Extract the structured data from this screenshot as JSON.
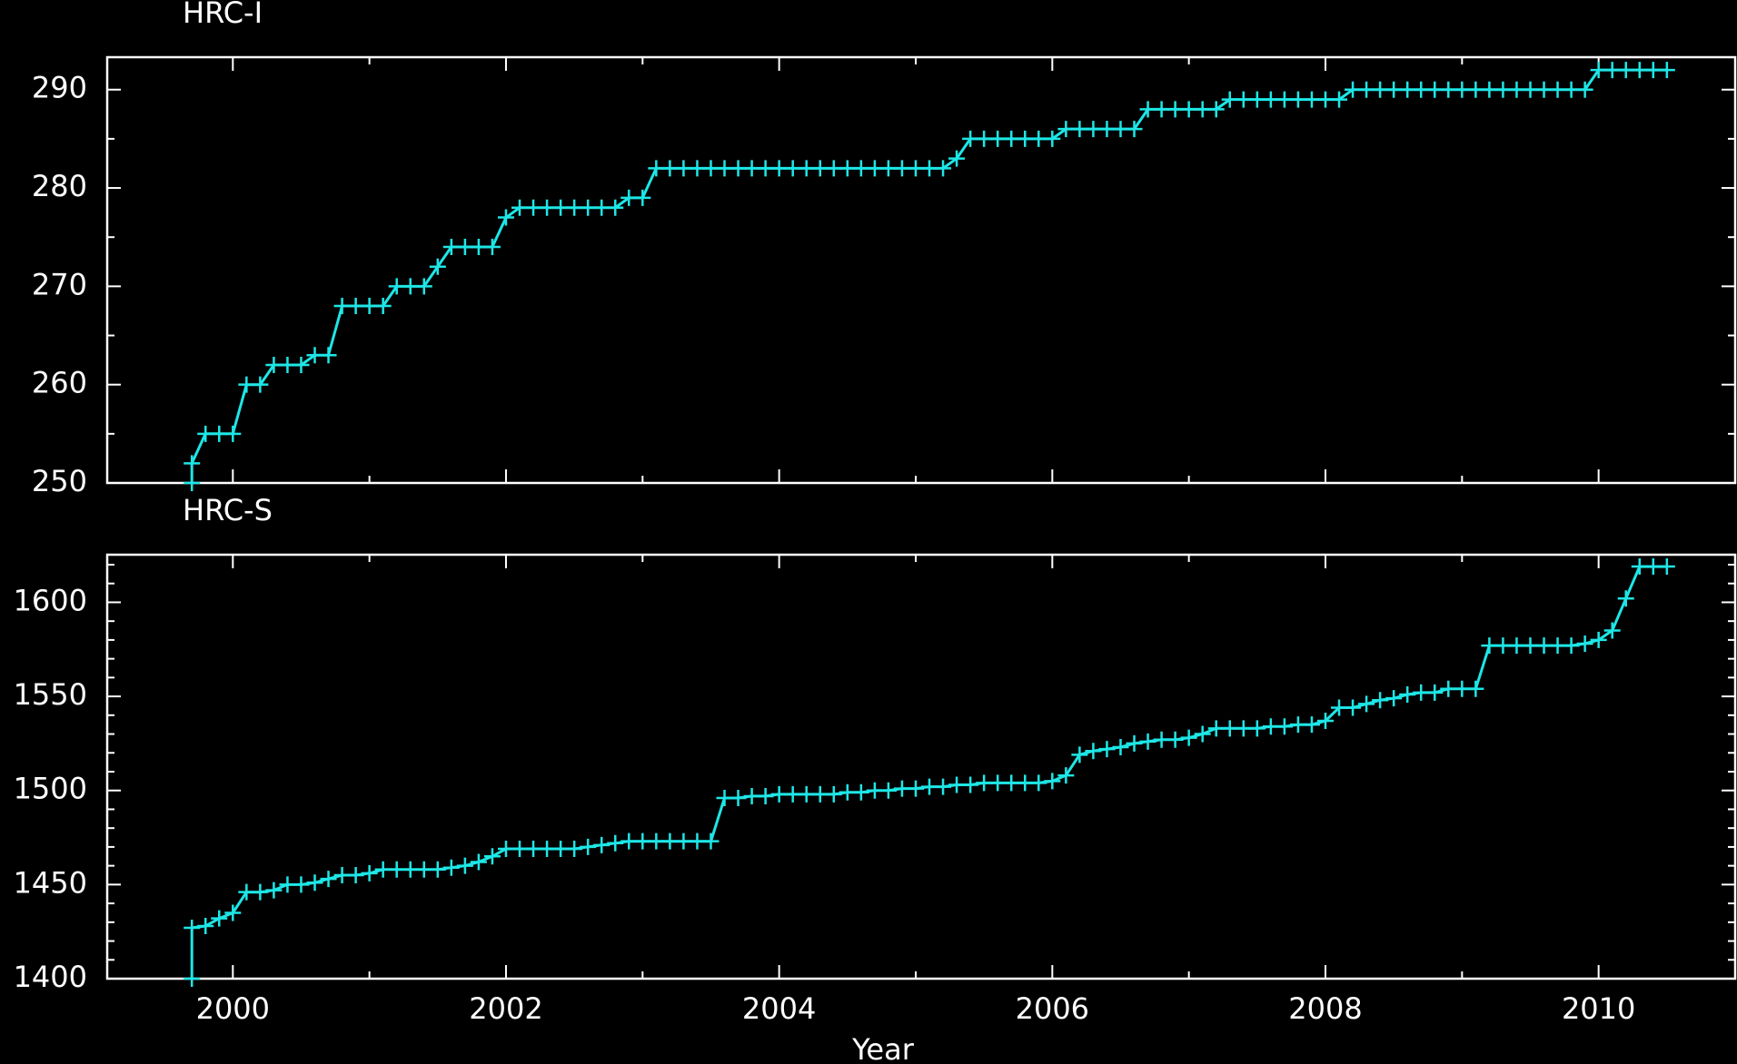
{
  "chart_data": [
    {
      "type": "line",
      "title": "HRC-I",
      "color": "#1ee6e6",
      "xlim": [
        1999.08,
        2011.0
      ],
      "xticks": [
        {
          "value": 2000,
          "label": ""
        },
        {
          "value": 2002,
          "label": ""
        },
        {
          "value": 2004,
          "label": ""
        },
        {
          "value": 2006,
          "label": ""
        },
        {
          "value": 2008,
          "label": ""
        },
        {
          "value": 2010,
          "label": ""
        }
      ],
      "xminorticks": [
        2001,
        2003,
        2005,
        2007,
        2009
      ],
      "ylim": [
        250,
        293.3
      ],
      "yticks": [
        250,
        260,
        270,
        280,
        290
      ],
      "yminorticks": [
        255,
        265,
        275,
        285
      ],
      "x": [
        1999.7,
        1999.7,
        1999.8,
        1999.9,
        2000.0,
        2000.1,
        2000.2,
        2000.3,
        2000.4,
        2000.5,
        2000.6,
        2000.7,
        2000.8,
        2000.9,
        2001.0,
        2001.1,
        2001.2,
        2001.3,
        2001.4,
        2001.5,
        2001.6,
        2001.7,
        2001.8,
        2001.9,
        2002.0,
        2002.1,
        2002.2,
        2002.3,
        2002.4,
        2002.5,
        2002.6,
        2002.7,
        2002.8,
        2002.9,
        2003.0,
        2003.1,
        2003.2,
        2003.3,
        2003.4,
        2003.5,
        2003.6,
        2003.7,
        2003.8,
        2003.9,
        2004.0,
        2004.1,
        2004.2,
        2004.3,
        2004.4,
        2004.5,
        2004.6,
        2004.7,
        2004.8,
        2004.9,
        2005.0,
        2005.1,
        2005.2,
        2005.3,
        2005.4,
        2005.5,
        2005.6,
        2005.7,
        2005.8,
        2005.9,
        2006.0,
        2006.1,
        2006.2,
        2006.3,
        2006.4,
        2006.5,
        2006.6,
        2006.7,
        2006.8,
        2006.9,
        2007.0,
        2007.1,
        2007.2,
        2007.3,
        2007.4,
        2007.5,
        2007.6,
        2007.7,
        2007.8,
        2007.9,
        2008.0,
        2008.1,
        2008.2,
        2008.3,
        2008.4,
        2008.5,
        2008.6,
        2008.7,
        2008.8,
        2008.9,
        2009.0,
        2009.1,
        2009.2,
        2009.3,
        2009.4,
        2009.5,
        2009.6,
        2009.7,
        2009.8,
        2009.9,
        2010.0,
        2010.1,
        2010.2,
        2010.3,
        2010.4,
        2010.5
      ],
      "values": [
        250,
        252,
        255,
        255,
        255,
        260,
        260,
        262,
        262,
        262,
        263,
        263,
        268,
        268,
        268,
        268,
        270,
        270,
        270,
        272,
        274,
        274,
        274,
        274,
        277,
        278,
        278,
        278,
        278,
        278,
        278,
        278,
        278,
        279,
        279,
        282,
        282,
        282,
        282,
        282,
        282,
        282,
        282,
        282,
        282,
        282,
        282,
        282,
        282,
        282,
        282,
        282,
        282,
        282,
        282,
        282,
        282,
        283,
        285,
        285,
        285,
        285,
        285,
        285,
        285,
        286,
        286,
        286,
        286,
        286,
        286,
        288,
        288,
        288,
        288,
        288,
        288,
        289,
        289,
        289,
        289,
        289,
        289,
        289,
        289,
        289,
        290,
        290,
        290,
        290,
        290,
        290,
        290,
        290,
        290,
        290,
        290,
        290,
        290,
        290,
        290,
        290,
        290,
        290,
        292,
        292,
        292,
        292,
        292,
        292
      ]
    },
    {
      "type": "line",
      "title": "HRC-S",
      "xlabel": "Year",
      "color": "#1ee6e6",
      "xlim": [
        1999.08,
        2011.0
      ],
      "xticks": [
        2000,
        2002,
        2004,
        2006,
        2008,
        2010
      ],
      "xminorticks": [
        2001,
        2003,
        2005,
        2007,
        2009
      ],
      "ylim": [
        1400,
        1625.3
      ],
      "yticks": [
        1400,
        1450,
        1500,
        1550,
        1600
      ],
      "yminorticks": [
        1410,
        1420,
        1430,
        1440,
        1460,
        1470,
        1480,
        1490,
        1510,
        1520,
        1530,
        1540,
        1560,
        1570,
        1580,
        1590,
        1610,
        1620
      ],
      "x": [
        1999.7,
        1999.7,
        1999.8,
        1999.9,
        2000.0,
        2000.1,
        2000.2,
        2000.3,
        2000.4,
        2000.5,
        2000.6,
        2000.7,
        2000.8,
        2000.9,
        2001.0,
        2001.1,
        2001.2,
        2001.3,
        2001.4,
        2001.5,
        2001.6,
        2001.7,
        2001.8,
        2001.9,
        2002.0,
        2002.1,
        2002.2,
        2002.3,
        2002.4,
        2002.5,
        2002.6,
        2002.7,
        2002.8,
        2002.9,
        2003.0,
        2003.1,
        2003.2,
        2003.3,
        2003.4,
        2003.5,
        2003.6,
        2003.7,
        2003.8,
        2003.9,
        2004.0,
        2004.1,
        2004.2,
        2004.3,
        2004.4,
        2004.5,
        2004.6,
        2004.7,
        2004.8,
        2004.9,
        2005.0,
        2005.1,
        2005.2,
        2005.3,
        2005.4,
        2005.5,
        2005.6,
        2005.7,
        2005.8,
        2005.9,
        2006.0,
        2006.1,
        2006.2,
        2006.3,
        2006.4,
        2006.5,
        2006.6,
        2006.7,
        2006.8,
        2006.9,
        2007.0,
        2007.1,
        2007.2,
        2007.3,
        2007.4,
        2007.5,
        2007.6,
        2007.7,
        2007.8,
        2007.9,
        2008.0,
        2008.1,
        2008.2,
        2008.3,
        2008.4,
        2008.5,
        2008.6,
        2008.7,
        2008.8,
        2008.9,
        2009.0,
        2009.1,
        2009.2,
        2009.3,
        2009.4,
        2009.5,
        2009.6,
        2009.7,
        2009.8,
        2009.9,
        2010.0,
        2010.1,
        2010.2,
        2010.3,
        2010.4,
        2010.5
      ],
      "values": [
        1400,
        1427,
        1428,
        1432,
        1435,
        1446,
        1446,
        1447,
        1450,
        1450,
        1451,
        1453,
        1455,
        1455,
        1456,
        1458,
        1458,
        1458,
        1458,
        1458,
        1459,
        1460,
        1462,
        1465,
        1469,
        1469,
        1469,
        1469,
        1469,
        1469,
        1470,
        1471,
        1472,
        1473,
        1473,
        1473,
        1473,
        1473,
        1473,
        1473,
        1496,
        1496,
        1497,
        1497,
        1498,
        1498,
        1498,
        1498,
        1498,
        1499,
        1499,
        1500,
        1500,
        1501,
        1501,
        1502,
        1502,
        1503,
        1503,
        1504,
        1504,
        1504,
        1504,
        1504,
        1505,
        1508,
        1519,
        1521,
        1522,
        1523,
        1525,
        1526,
        1527,
        1527,
        1528,
        1530,
        1533,
        1533,
        1533,
        1533,
        1534,
        1534,
        1535,
        1535,
        1537,
        1544,
        1544,
        1546,
        1548,
        1549,
        1551,
        1552,
        1552,
        1554,
        1554,
        1554,
        1577,
        1577,
        1577,
        1577,
        1577,
        1577,
        1577,
        1578,
        1580,
        1585,
        1602,
        1619,
        1619,
        1619
      ]
    }
  ]
}
